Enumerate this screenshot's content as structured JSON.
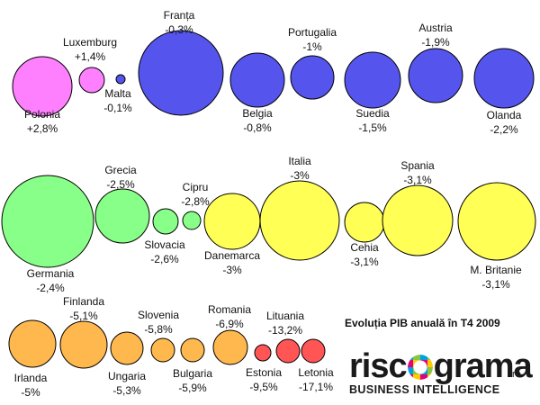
{
  "chart_data": {
    "type": "bubble",
    "title": "Evoluția PIB anuală în T4 2009",
    "colors": {
      "magenta": "#ff80ff",
      "blue": "#5555ee",
      "green": "#88ff88",
      "yellow": "#ffff55",
      "orange": "#ffb84d",
      "red": "#ff5555",
      "stroke": "#000000"
    },
    "countries": [
      {
        "name": "Polonia",
        "value": "+2,8%",
        "group": "magenta"
      },
      {
        "name": "Luxemburg",
        "value": "+1,4%",
        "group": "magenta"
      },
      {
        "name": "Malta",
        "value": "-0,1%",
        "group": "blue"
      },
      {
        "name": "Franța",
        "value": "-0,3%",
        "group": "blue"
      },
      {
        "name": "Belgia",
        "value": "-0,8%",
        "group": "blue"
      },
      {
        "name": "Portugalia",
        "value": "-1%",
        "group": "blue"
      },
      {
        "name": "Suedia",
        "value": "-1,5%",
        "group": "blue"
      },
      {
        "name": "Austria",
        "value": "-1,9%",
        "group": "blue"
      },
      {
        "name": "Olanda",
        "value": "-2,2%",
        "group": "blue"
      },
      {
        "name": "Germania",
        "value": "-2,4%",
        "group": "green"
      },
      {
        "name": "Grecia",
        "value": "-2,5%",
        "group": "green"
      },
      {
        "name": "Slovacia",
        "value": "-2,6%",
        "group": "green"
      },
      {
        "name": "Cipru",
        "value": "-2,8%",
        "group": "green"
      },
      {
        "name": "Danemarca",
        "value": "-3%",
        "group": "yellow"
      },
      {
        "name": "Italia",
        "value": "-3%",
        "group": "yellow"
      },
      {
        "name": "Cehia",
        "value": "-3,1%",
        "group": "yellow"
      },
      {
        "name": "Spania",
        "value": "-3,1%",
        "group": "yellow"
      },
      {
        "name": "M. Britanie",
        "value": "-3,1%",
        "group": "yellow"
      },
      {
        "name": "Irlanda",
        "value": "-5%",
        "group": "orange"
      },
      {
        "name": "Finlanda",
        "value": "-5,1%",
        "group": "orange"
      },
      {
        "name": "Ungaria",
        "value": "-5,3%",
        "group": "orange"
      },
      {
        "name": "Slovenia",
        "value": "-5,8%",
        "group": "orange"
      },
      {
        "name": "Bulgaria",
        "value": "-5,9%",
        "group": "orange"
      },
      {
        "name": "Romania",
        "value": "-6,9%",
        "group": "orange"
      },
      {
        "name": "Estonia",
        "value": "-9,5%",
        "group": "red"
      },
      {
        "name": "Lituania",
        "value": "-13,2%",
        "group": "red"
      },
      {
        "name": "Letonia",
        "value": "-17,1%",
        "group": "red"
      }
    ]
  },
  "logo": {
    "word_left": "risc",
    "word_right": "grama",
    "domain": ".ro",
    "tagline": "BUSINESS INTELLIGENCE"
  }
}
